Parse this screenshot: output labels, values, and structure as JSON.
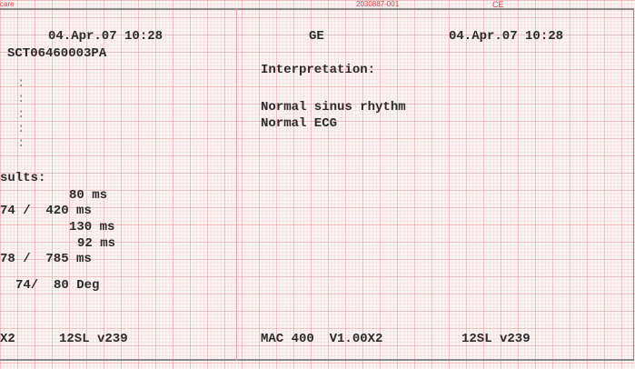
{
  "header": {
    "code_left": "care",
    "part_number": "2030887-001",
    "mark": "CE"
  },
  "left": {
    "datetime": "04.Apr.07 10:28",
    "id": "SCT06460003PA",
    "dots": [
      ":",
      ":",
      ":",
      ":",
      ":"
    ],
    "results_label": "sults:",
    "results": [
      "80 ms",
      "74 /  420 ms",
      "130 ms",
      "92 ms",
      "78 /  785 ms",
      "74/  80 Deg"
    ],
    "footer": [
      "X2",
      "12SL v239"
    ]
  },
  "right": {
    "brand": "GE",
    "datetime": "04.Apr.07 10:28",
    "interpretation_label": "Interpretation:",
    "statements": [
      "Normal sinus rhythm",
      "Normal ECG"
    ],
    "footer": [
      "MAC 400  V1.00X2",
      "12SL v239"
    ]
  }
}
